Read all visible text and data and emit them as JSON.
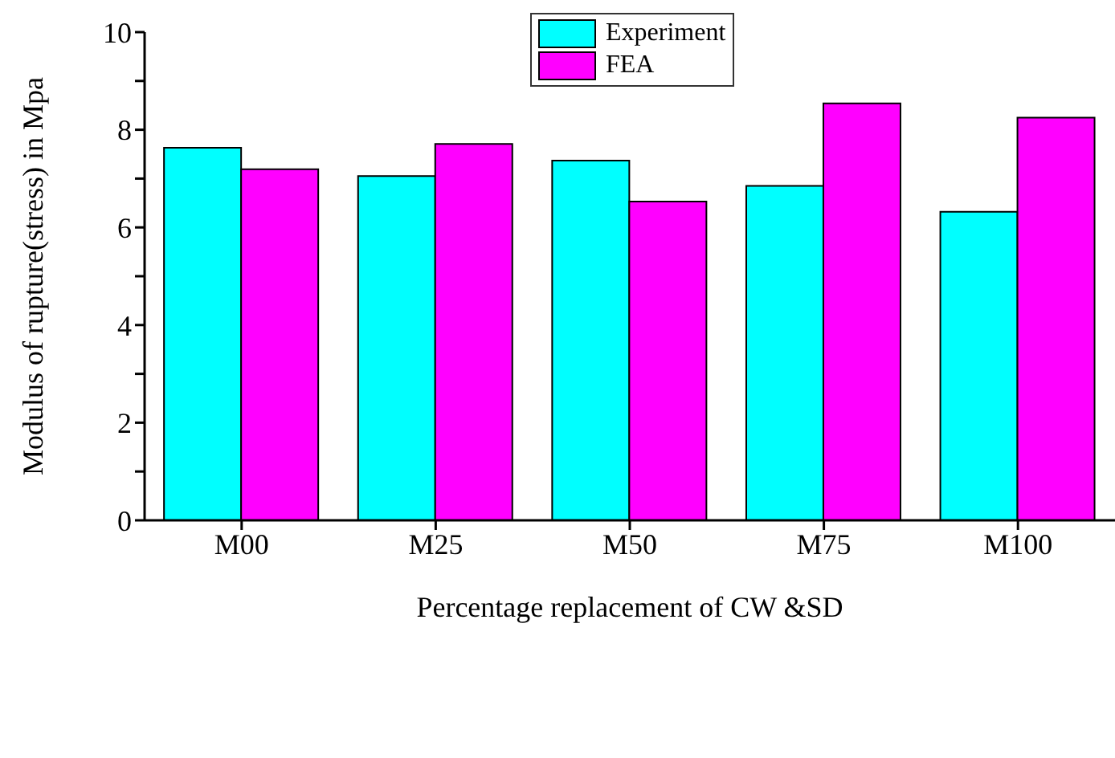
{
  "chart_data": {
    "type": "bar",
    "xlabel": "Percentage replacement of CW &SD",
    "ylabel": "Modulus of rupture(stress) in Mpa",
    "categories": [
      "M00",
      "M25",
      "M50",
      "M75",
      "M100"
    ],
    "series": [
      {
        "name": "Experiment",
        "color": "#00ffff",
        "values": [
          7.63,
          7.05,
          7.37,
          6.85,
          6.32
        ]
      },
      {
        "name": "FEA",
        "color": "#ff00ff",
        "values": [
          7.19,
          7.71,
          6.53,
          8.54,
          8.25
        ]
      }
    ],
    "ylim": [
      0,
      10
    ],
    "yticks": [
      0,
      {
        "value": 1,
        "label": null
      },
      2,
      {
        "value": 3,
        "label": null
      },
      4,
      {
        "value": 5,
        "label": null
      },
      6,
      {
        "value": 7,
        "label": null
      },
      8,
      {
        "value": 9,
        "label": null
      },
      10
    ],
    "grid": false,
    "legend": "top"
  }
}
